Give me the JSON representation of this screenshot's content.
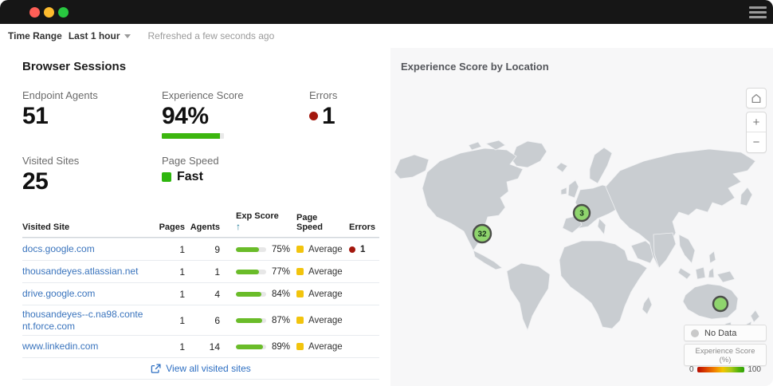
{
  "titlebar": {
    "traffic_lights": [
      "#ff5f57",
      "#febc2e",
      "#28c840"
    ],
    "menu_icon": "hamburger-icon"
  },
  "toolbar": {
    "time_range_label": "Time Range",
    "time_range_value": "Last 1 hour",
    "refreshed_text": "Refreshed a few seconds ago"
  },
  "browser_sessions": {
    "title": "Browser Sessions",
    "metrics": {
      "endpoint_agents": {
        "label": "Endpoint Agents",
        "value": "51"
      },
      "experience_score": {
        "label": "Experience Score",
        "value": "94%",
        "bar_pct": 94
      },
      "errors": {
        "label": "Errors",
        "value": "1"
      },
      "visited_sites": {
        "label": "Visited Sites",
        "value": "25"
      },
      "page_speed": {
        "label": "Page Speed",
        "value": "Fast"
      }
    },
    "table": {
      "headers": {
        "site": "Visited Site",
        "pages": "Pages",
        "agents": "Agents",
        "exp_score": "Exp Score",
        "sort_arrow": "↑",
        "page_speed_line1": "Page",
        "page_speed_line2": "Speed",
        "errors": "Errors"
      },
      "rows": [
        {
          "site": "docs.google.com",
          "pages": "1",
          "agents": "9",
          "exp_score_pct": 75,
          "exp_score": "75%",
          "page_speed": "Average",
          "errors": "1"
        },
        {
          "site": "thousandeyes.atlassian.net",
          "pages": "1",
          "agents": "1",
          "exp_score_pct": 77,
          "exp_score": "77%",
          "page_speed": "Average",
          "errors": ""
        },
        {
          "site": "drive.google.com",
          "pages": "1",
          "agents": "4",
          "exp_score_pct": 84,
          "exp_score": "84%",
          "page_speed": "Average",
          "errors": ""
        },
        {
          "site": "thousandeyes--c.na98.content.force.com",
          "pages": "1",
          "agents": "6",
          "exp_score_pct": 87,
          "exp_score": "87%",
          "page_speed": "Average",
          "errors": ""
        },
        {
          "site": "www.linkedin.com",
          "pages": "1",
          "agents": "14",
          "exp_score_pct": 89,
          "exp_score": "89%",
          "page_speed": "Average",
          "errors": ""
        }
      ],
      "footer_link": "View all visited sites"
    }
  },
  "map": {
    "title": "Experience Score by Location",
    "controls": {
      "home": "home-icon",
      "zoom_in": "+",
      "zoom_out": "−"
    },
    "markers": [
      {
        "label": "32",
        "location": "southwestern-united-states"
      },
      {
        "label": "3",
        "location": "western-europe"
      },
      {
        "label": "",
        "location": "southeastern-australia"
      }
    ],
    "legend": {
      "no_data_label": "No Data",
      "scale_label": "Experience Score (%)",
      "scale_min": "0",
      "scale_max": "100"
    }
  },
  "accent_colors": {
    "score_green": "#3cb60e",
    "bar_green": "#6abc29",
    "average_yellow": "#f2c40d",
    "error_red": "#a3170d",
    "link_blue": "#2e6fc2",
    "marker_green": "#8fd56d",
    "land_gray": "#c9cdd1"
  }
}
